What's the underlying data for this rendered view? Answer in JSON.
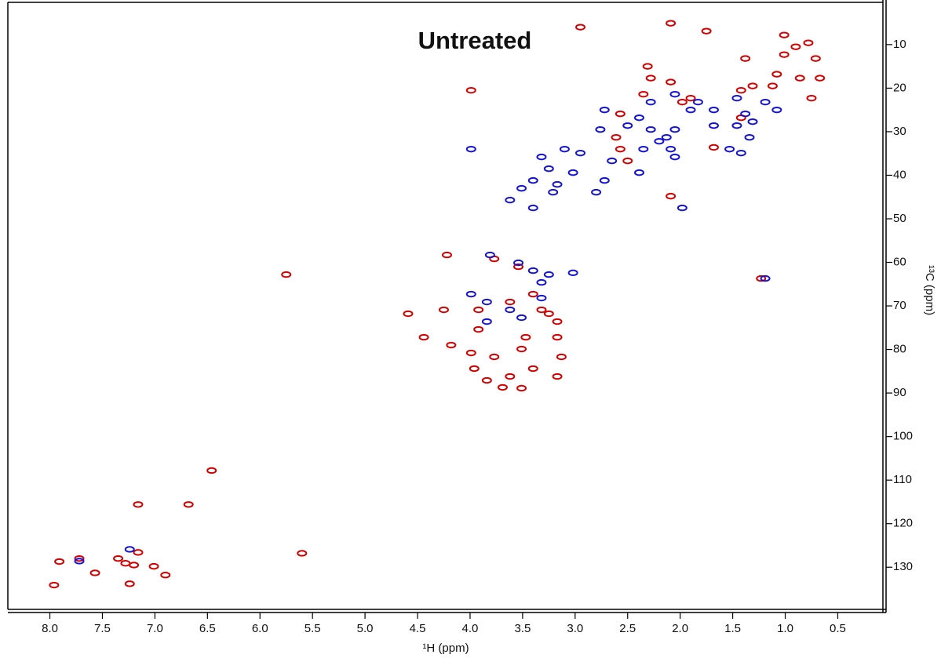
{
  "chart_data": {
    "type": "scatter",
    "title": "Untreated",
    "x_label": "¹H (ppm)",
    "y_label": "¹³C (ppm)",
    "xlim": [
      8.4,
      0.07
    ],
    "ylim": [
      139.5,
      0.3
    ],
    "xticks": [
      {
        "value": 8,
        "label": "8.0"
      },
      7.5,
      {
        "value": 7,
        "label": "7.0"
      },
      6.5,
      {
        "value": 6,
        "label": "6.0"
      },
      5.5,
      {
        "value": 5,
        "label": "5.0"
      },
      4.5,
      {
        "value": 4,
        "label": "4.0"
      },
      3.5,
      {
        "value": 3,
        "label": "3.0"
      },
      2.5,
      {
        "value": 2,
        "label": "2.0"
      },
      1.5,
      {
        "value": 1,
        "label": "1.0"
      },
      0.5
    ],
    "yticks": [
      10,
      20,
      30,
      40,
      50,
      60,
      70,
      80,
      90,
      100,
      110,
      120,
      130
    ],
    "series": [
      {
        "color": "#d40000",
        "x": [
          1.01,
          0.9,
          0.78,
          0.71,
          0.67,
          0.86,
          1.08,
          0.75,
          1.01,
          1.12,
          1.38,
          1.31,
          1.42,
          1.75,
          2.31,
          2.28,
          2.09,
          1.98,
          1.9,
          1.42,
          2.57,
          2.35,
          2.95,
          2.09,
          3.99,
          2.61,
          2.57,
          2.5,
          2.09,
          1.68,
          4.22,
          3.77,
          3.54,
          3.4,
          4.25,
          3.92,
          3.62,
          3.32,
          3.25,
          4.59,
          4.44,
          4.18,
          3.99,
          3.77,
          3.51,
          3.4,
          3.92,
          3.62,
          3.47,
          3.96,
          3.69,
          3.17,
          3.13,
          3.17,
          3.17,
          3.84,
          3.51,
          7.96,
          7.91,
          7.72,
          7.57,
          7.35,
          7.28,
          7.2,
          7.01,
          6.9,
          7.24,
          7.16,
          6.68,
          7.16,
          1.23,
          5.75,
          6.46,
          5.6
        ],
        "values": [
          7.8,
          10.5,
          9.6,
          13.2,
          17.7,
          17.7,
          16.8,
          22.3,
          12.3,
          19.5,
          13.2,
          19.5,
          20.5,
          6.9,
          15.0,
          17.7,
          18.6,
          23.2,
          22.3,
          26.8,
          25.9,
          21.4,
          6.0,
          5.1,
          20.5,
          31.3,
          34.0,
          36.7,
          44.8,
          33.6,
          58.3,
          59.2,
          61.0,
          67.3,
          70.9,
          70.9,
          69.1,
          70.9,
          71.8,
          71.8,
          77.2,
          79.0,
          80.8,
          81.7,
          79.9,
          84.4,
          75.4,
          86.2,
          77.2,
          84.4,
          88.7,
          77.2,
          81.7,
          86.2,
          73.6,
          87.1,
          88.9,
          134.1,
          128.7,
          128.0,
          131.3,
          128.0,
          129.1,
          129.5,
          129.8,
          131.8,
          133.8,
          126.6,
          115.6,
          115.6,
          63.7,
          62.8,
          107.8,
          126.8
        ]
      },
      {
        "color": "#1414d2",
        "x": [
          2.76,
          2.28,
          2.05,
          1.9,
          1.46,
          1.31,
          1.19,
          1.08,
          1.83,
          1.68,
          2.72,
          2.39,
          2.5,
          2.28,
          2.05,
          2.13,
          2.2,
          2.09,
          2.05,
          1.68,
          1.46,
          1.38,
          1.34,
          1.53,
          1.42,
          3.1,
          2.95,
          3.32,
          3.25,
          3.02,
          3.4,
          3.17,
          2.8,
          3.21,
          3.51,
          3.62,
          3.4,
          2.72,
          2.39,
          1.98,
          2.65,
          2.35,
          3.99,
          3.81,
          3.54,
          3.4,
          3.25,
          3.32,
          3.02,
          3.99,
          3.84,
          3.62,
          3.51,
          3.84,
          3.32,
          1.19,
          7.72,
          7.24
        ],
        "values": [
          29.5,
          23.2,
          21.4,
          25.0,
          22.3,
          27.7,
          23.2,
          25.0,
          23.2,
          25.0,
          25.0,
          26.8,
          28.6,
          29.5,
          29.5,
          31.3,
          32.2,
          34.0,
          35.8,
          28.6,
          28.6,
          25.9,
          31.3,
          34.0,
          34.9,
          34.0,
          34.9,
          35.8,
          38.5,
          39.4,
          41.2,
          42.1,
          43.9,
          43.9,
          43.0,
          45.7,
          47.5,
          41.2,
          39.4,
          47.5,
          36.7,
          34.0,
          34.0,
          58.3,
          60.1,
          61.9,
          62.8,
          64.6,
          62.4,
          67.3,
          69.1,
          70.9,
          72.7,
          73.6,
          68.2,
          63.7,
          128.6,
          125.9
        ]
      }
    ]
  }
}
